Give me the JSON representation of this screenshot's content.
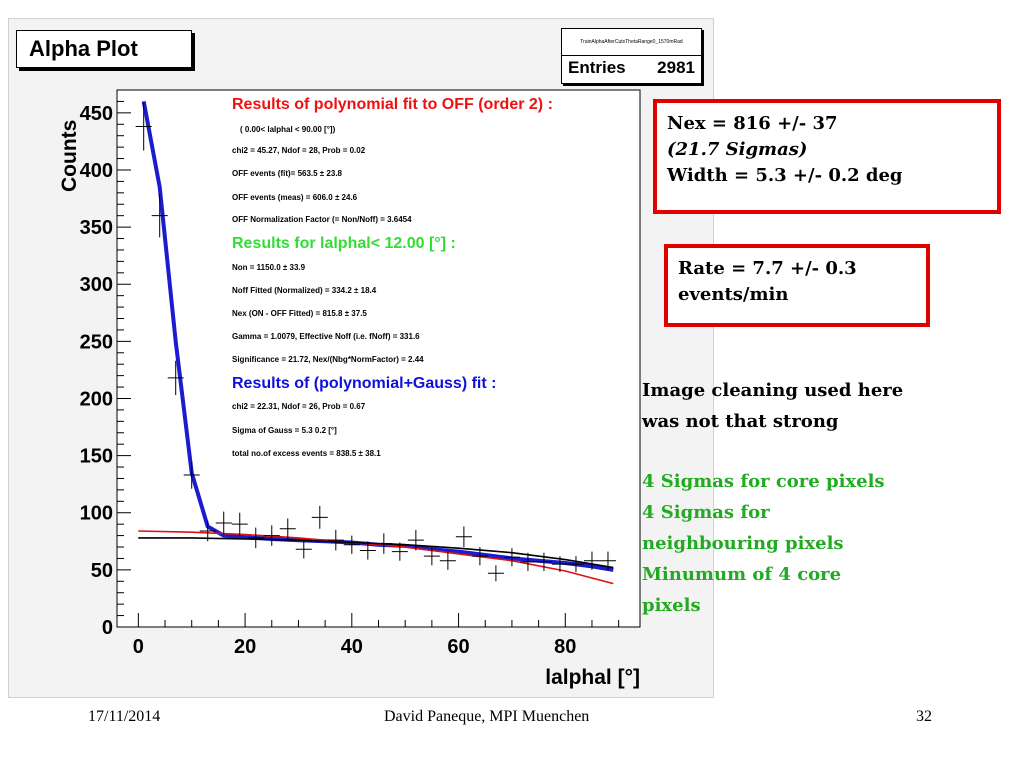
{
  "plot": {
    "title": "Alpha Plot",
    "stats": {
      "name": "TrainAlphaAfterCutsThetaRange0_1570mRad",
      "entries_label": "Entries",
      "entries_value": "2981"
    }
  },
  "chart_data": {
    "type": "scatter",
    "xlabel": "lalphal  [°]",
    "ylabel": "Counts",
    "xlim": [
      -4,
      94
    ],
    "ylim": [
      0,
      470
    ],
    "x_ticks": [
      "0",
      "20",
      "40",
      "60",
      "80"
    ],
    "y_ticks": [
      "0",
      "50",
      "100",
      "150",
      "200",
      "250",
      "300",
      "350",
      "400",
      "450"
    ],
    "series": [
      {
        "marker": "cross",
        "x": [
          1,
          4,
          7,
          10,
          13,
          16,
          19,
          22,
          25,
          28,
          31,
          34,
          37,
          40,
          43,
          46,
          49,
          52,
          55,
          58,
          61,
          64,
          67,
          70,
          73,
          76,
          79,
          82,
          85,
          88
        ],
        "y": [
          438,
          360,
          218,
          133,
          84,
          91,
          90,
          78,
          80,
          86,
          68,
          96,
          76,
          72,
          67,
          73,
          66,
          76,
          62,
          58,
          79,
          62,
          47,
          61,
          57,
          57,
          55,
          55,
          58,
          58
        ],
        "errors": [
          21,
          19,
          15,
          12,
          9,
          10,
          10,
          9,
          9,
          9,
          8,
          10,
          9,
          8,
          8,
          9,
          8,
          9,
          8,
          8,
          9,
          8,
          7,
          8,
          8,
          8,
          7,
          7,
          8,
          8
        ]
      },
      {
        "style": "fit",
        "color": "#1b1bd0",
        "x": [
          1,
          4,
          7,
          10,
          13,
          16,
          19,
          22,
          25,
          30,
          35,
          40,
          45,
          50,
          55,
          60,
          65,
          70,
          75,
          80,
          85,
          89
        ],
        "y": [
          460,
          385,
          250,
          135,
          88,
          80,
          79,
          78,
          77,
          76,
          75,
          74,
          72,
          71,
          68,
          66,
          63,
          60,
          58,
          56,
          53,
          50
        ]
      },
      {
        "style": "fit",
        "color": "#e01010",
        "x": [
          0,
          10,
          20,
          30,
          40,
          50,
          60,
          70,
          80,
          89
        ],
        "y": [
          84,
          83,
          81,
          78,
          74,
          70,
          64,
          58,
          49,
          38
        ]
      },
      {
        "style": "fit",
        "color": "#000000",
        "x": [
          0,
          10,
          20,
          30,
          40,
          50,
          60,
          70,
          80,
          89
        ],
        "y": [
          78,
          78,
          77,
          76,
          74,
          72,
          69,
          65,
          59,
          52
        ]
      }
    ]
  },
  "fit_results": {
    "off_title": "Results of polynomial fit to OFF (order  2) :",
    "off_lines": [
      "(  0.00< lalphal < 90.00 [°])",
      "chi2 =   45.27,  Ndof =  28,  Prob =  0.02",
      "OFF events (fit)=   563.5 ±    23.8",
      "OFF events (meas) =   606.0 ±    24.6",
      "OFF Normalization Factor (= Non/Noff) = 3.6454"
    ],
    "on_title": "Results for lalphal<  12.00 [°] :",
    "on_lines": [
      "Non =   1150.0 ±    33.9",
      "Noff Fitted (Normalized)  =   334.2 ±    18.4",
      "Nex (ON - OFF Fitted) =   815.8 ±    37.5",
      "Gamma = 1.0079,   Effective Noff (i.e. fNoff) = 331.6",
      "Significance = 21.72,    Nex/(Nbg*NormFactor) =   2.44"
    ],
    "gauss_title": "Results of (polynomial+Gauss) fit  :",
    "gauss_lines": [
      "chi2 =   22.31,  Ndof =  26,  Prob =  0.67",
      "Sigma of Gauss    =     5.3    0.2  [°]",
      "total no.of excess events =   838.5 ±    38.1"
    ],
    "colors": {
      "off": "#ee1111",
      "on": "#33dd33",
      "gauss": "#1010dd"
    }
  },
  "boxes": {
    "nex_line1": "Nex = 816 +/-  37",
    "nex_line2": "(21.7 Sigmas)",
    "nex_line3": "Width = 5.3 +/- 0.2 deg",
    "rate_line1": "Rate = 7.7 +/- 0.3",
    "rate_line2": "events/min"
  },
  "notes": {
    "cleaning_1": "Image cleaning used here",
    "cleaning_2": "was not that strong",
    "green_1": "4 Sigmas for core pixels",
    "green_2": "4 Sigmas for",
    "green_3": "neighbouring pixels",
    "green_4": "Minumum of 4 core",
    "green_5": "pixels",
    "green_color": "#22aa22"
  },
  "footer": {
    "date": "17/11/2014",
    "author": "David Paneque, MPI Muenchen",
    "page": "32"
  }
}
